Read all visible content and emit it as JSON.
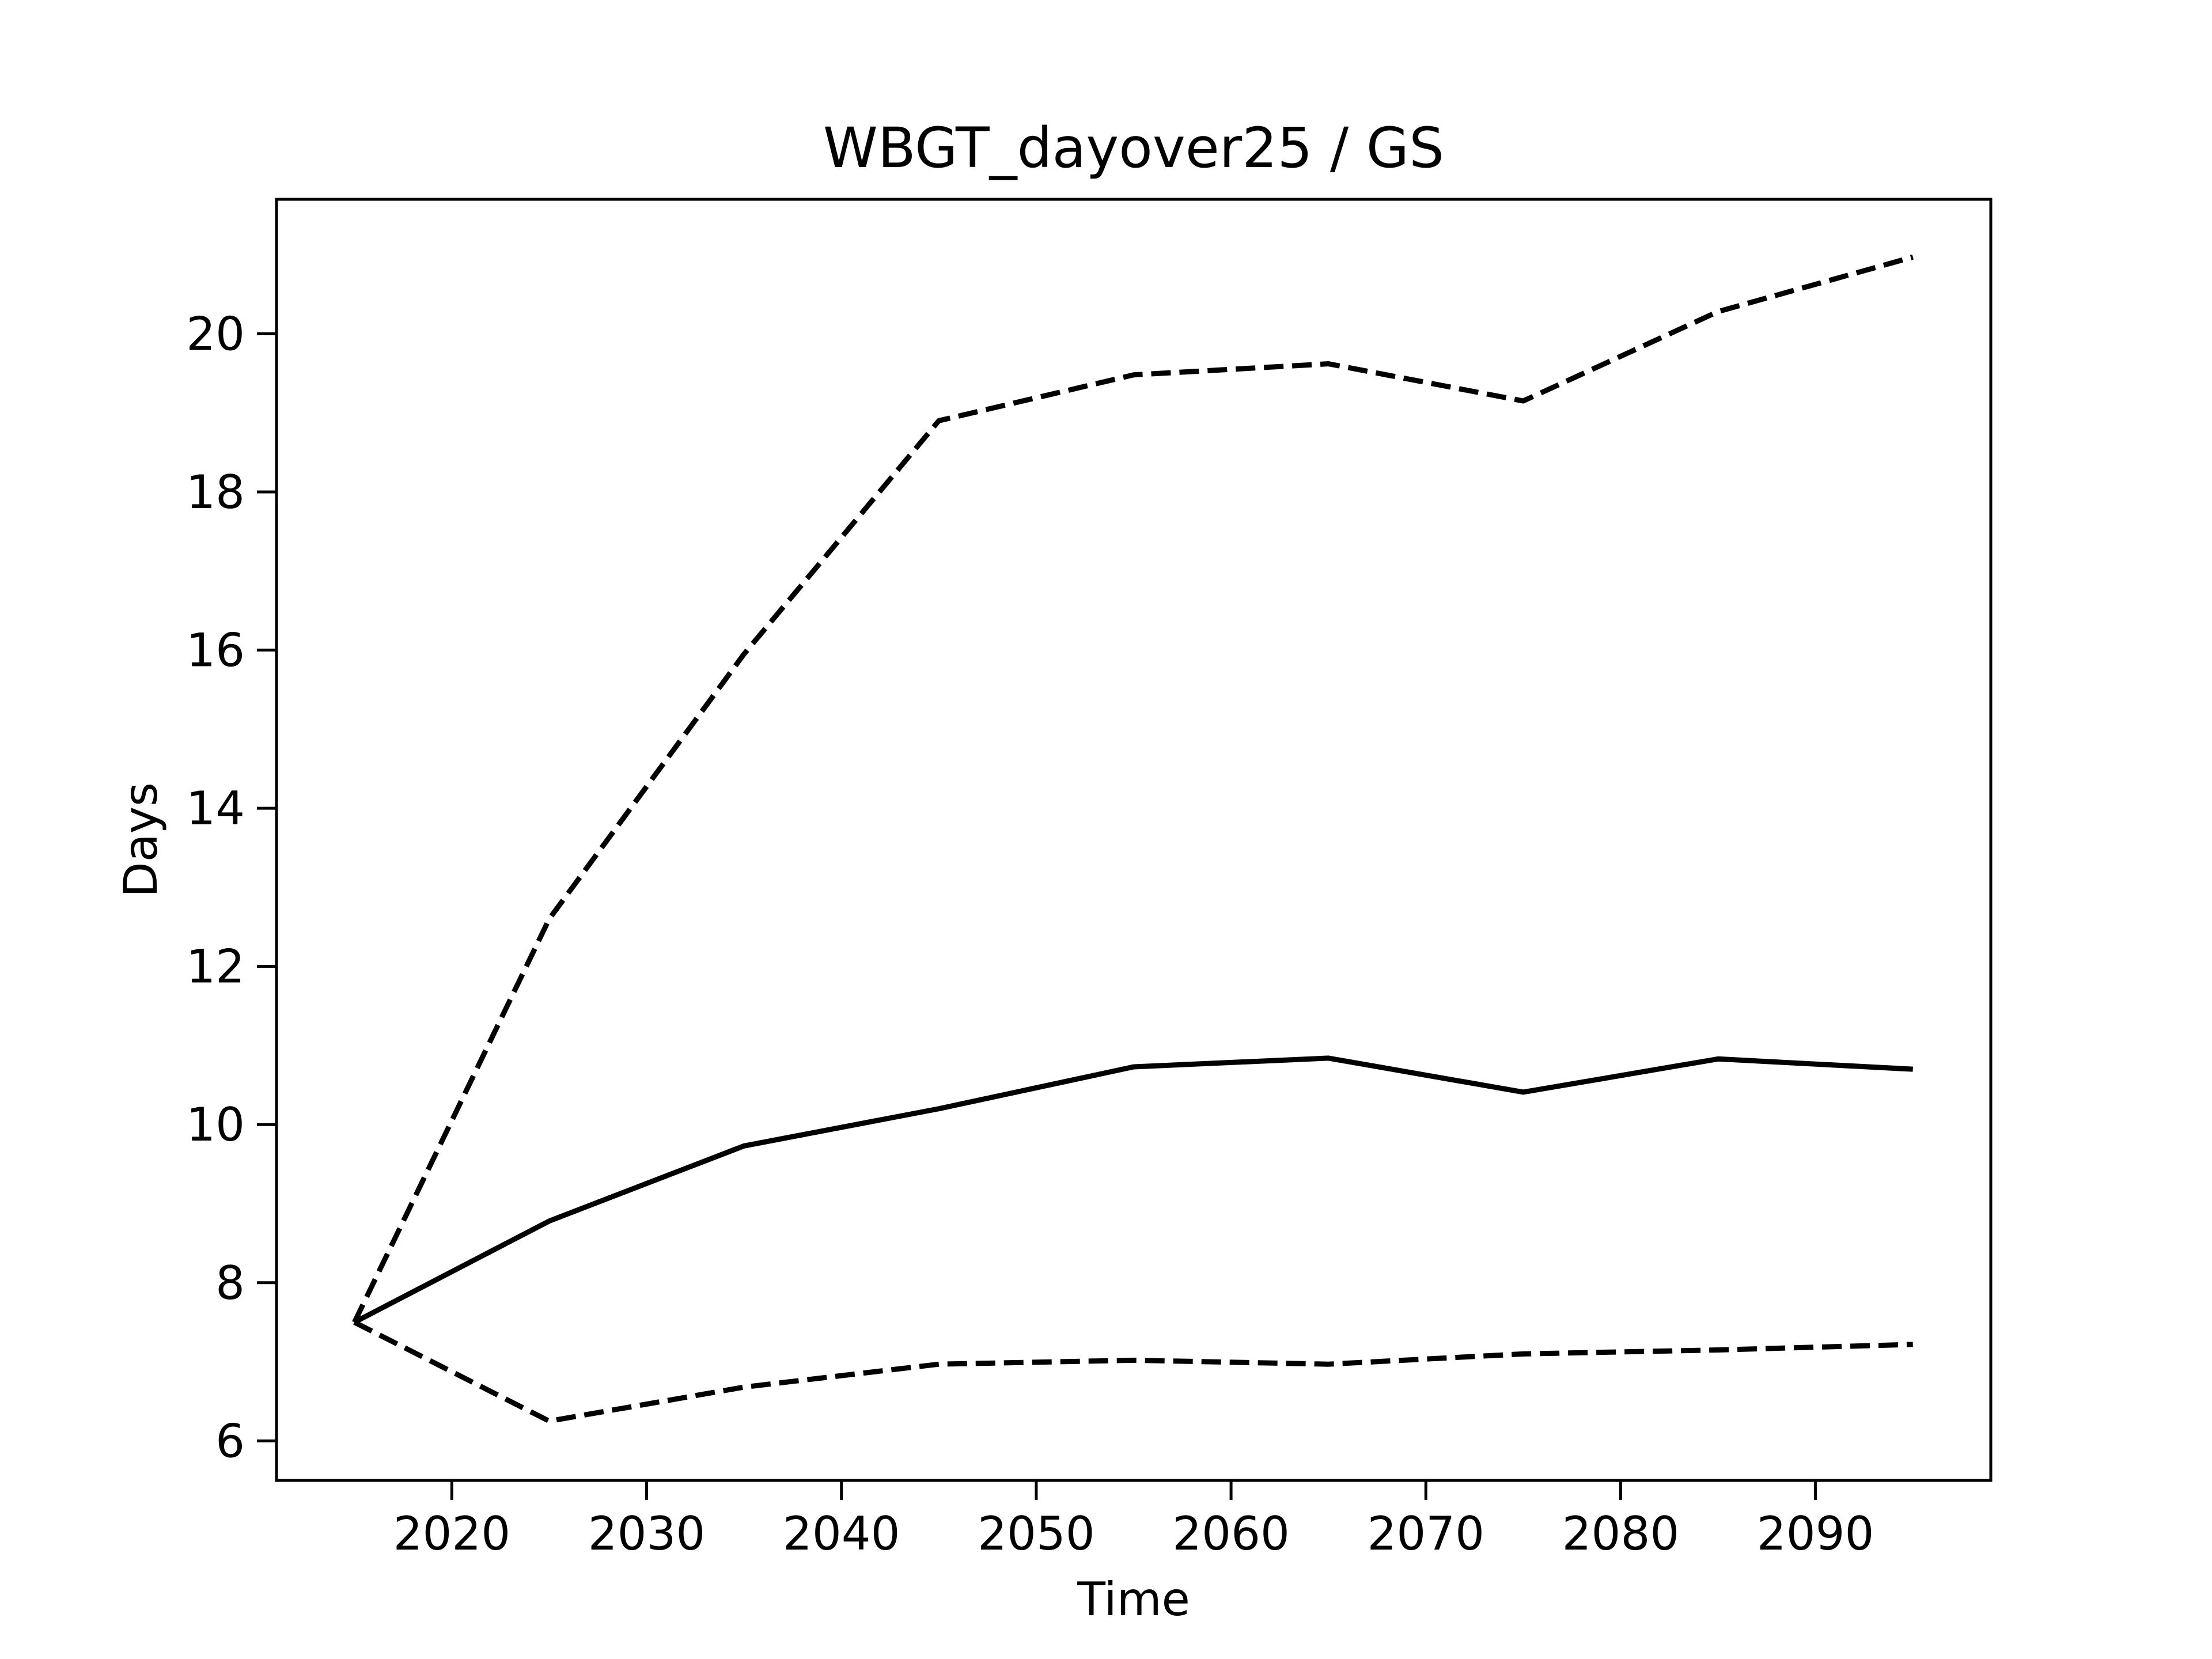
{
  "chart_data": {
    "type": "line",
    "title": "WBGT_dayover25 / GS",
    "xlabel": "Time",
    "ylabel": "Days",
    "xlim": [
      2011,
      2099
    ],
    "ylim": [
      5.5,
      21.7
    ],
    "xticks": [
      2020,
      2030,
      2040,
      2050,
      2060,
      2070,
      2080,
      2090
    ],
    "yticks": [
      6,
      8,
      10,
      12,
      14,
      16,
      18,
      20
    ],
    "grid": false,
    "legend": "none",
    "x": [
      2015,
      2025,
      2035,
      2045,
      2055,
      2065,
      2075,
      2085,
      2095
    ],
    "series": [
      {
        "style": "dashed",
        "color": "#000000",
        "values": [
          7.5,
          12.6,
          15.95,
          18.9,
          19.48,
          19.62,
          19.15,
          20.28,
          20.97
        ]
      },
      {
        "style": "solid",
        "color": "#000000",
        "values": [
          7.5,
          8.78,
          9.73,
          10.2,
          10.73,
          10.84,
          10.41,
          10.83,
          10.7
        ]
      },
      {
        "style": "dashed",
        "color": "#000000",
        "values": [
          7.5,
          6.25,
          6.68,
          6.97,
          7.02,
          6.97,
          7.1,
          7.15,
          7.22
        ]
      }
    ]
  }
}
